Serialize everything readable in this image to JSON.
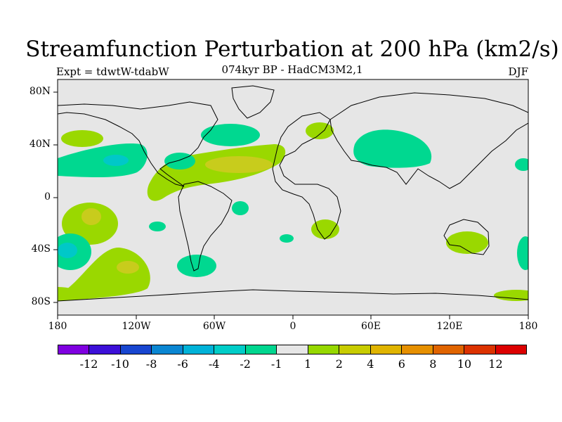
{
  "title": "Streamfunction Perturbation at 200 hPa (km2/s)",
  "subtitle": "074kyr BP - HadCM3M2,1",
  "left_label": "Expt = tdwtW-tdabW",
  "right_label": "DJF",
  "lat_labels": [
    "80N",
    "40N",
    "0",
    "40S",
    "80S"
  ],
  "lon_labels": [
    "180",
    "120W",
    "60W",
    "0",
    "60E",
    "120E",
    "180"
  ],
  "colorbar": {
    "colors": [
      "#7f00e0",
      "#3c10d8",
      "#1846d0",
      "#0a86d2",
      "#00b2d8",
      "#00cdc8",
      "#00d68f",
      "#e6e6e6",
      "#96d800",
      "#c8cc00",
      "#e0b400",
      "#e69000",
      "#e06400",
      "#dc3200",
      "#dc0000"
    ],
    "labels": [
      "-12",
      "-10",
      "-8",
      "-6",
      "-4",
      "-2",
      "-1",
      "1",
      "2",
      "4",
      "6",
      "8",
      "10",
      "12"
    ]
  },
  "map_colors": {
    "background": "#e6e6e6",
    "green_1_2": "#9ad800",
    "yellow_2_4": "#c8cc1c",
    "teal_m1_m2": "#00d890",
    "cyan_m2_m4": "#00c8c8"
  }
}
